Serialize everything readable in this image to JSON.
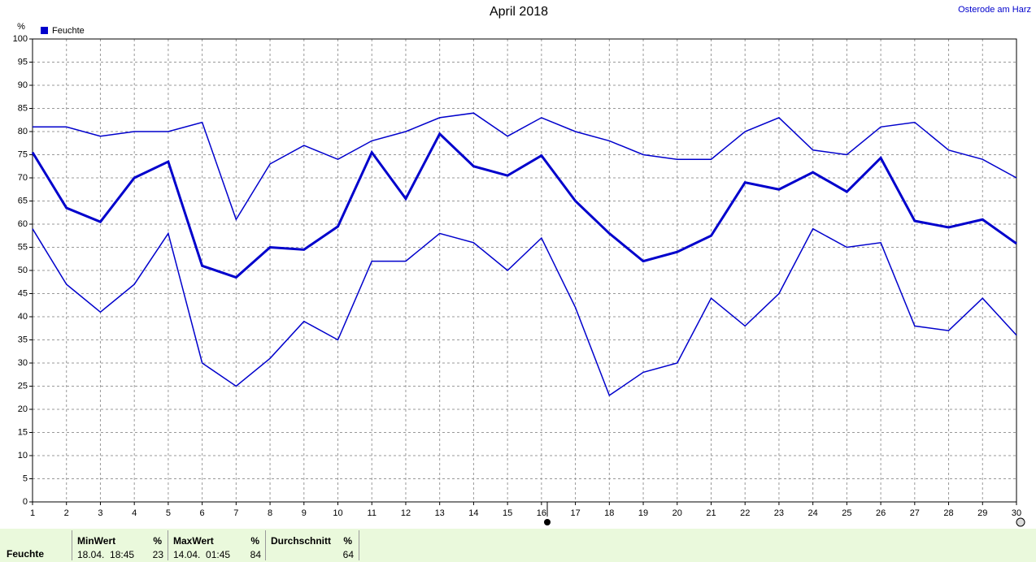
{
  "chart_data": {
    "type": "line",
    "title": "April 2018",
    "location": "Osterode am Harz",
    "y_unit": "%",
    "legend": {
      "label": "Feuchte",
      "color": "#0000cc"
    },
    "categories": [
      "1",
      "2",
      "3",
      "4",
      "5",
      "6",
      "7",
      "8",
      "9",
      "10",
      "11",
      "12",
      "13",
      "14",
      "15",
      "16",
      "17",
      "18",
      "19",
      "20",
      "21",
      "22",
      "23",
      "24",
      "25",
      "26",
      "27",
      "28",
      "29",
      "30"
    ],
    "series": [
      {
        "color": "#0000cc",
        "width": 1.5,
        "values": [
          81,
          81,
          79,
          80,
          80,
          82,
          61,
          73,
          77,
          74,
          78,
          80,
          83,
          84,
          79,
          83,
          80,
          78,
          75,
          74,
          74,
          80,
          83,
          76,
          75,
          81,
          82,
          76,
          74,
          70
        ]
      },
      {
        "color": "#0000cc",
        "width": 3,
        "values": [
          75.5,
          63.5,
          60.5,
          70,
          73.5,
          51,
          48.5,
          55,
          54.5,
          59.5,
          75.5,
          65.5,
          79.5,
          72.5,
          70.5,
          74.8,
          65,
          58,
          52,
          54,
          57.5,
          69,
          67.5,
          71.2,
          67,
          74.3,
          60.7,
          59.3,
          61,
          55.8
        ]
      },
      {
        "color": "#0000cc",
        "width": 1.5,
        "values": [
          59,
          47,
          41,
          47,
          58,
          30,
          25,
          31,
          39,
          35,
          52,
          52,
          58,
          56,
          50,
          57,
          42,
          23,
          28,
          30,
          44,
          38,
          45,
          59,
          55,
          56,
          38,
          37,
          44,
          36
        ]
      }
    ],
    "ylim": [
      0,
      100
    ],
    "yticks": [
      0,
      5,
      10,
      15,
      20,
      25,
      30,
      35,
      40,
      45,
      50,
      55,
      60,
      65,
      70,
      75,
      80,
      85,
      90,
      95,
      100
    ],
    "grid": true
  },
  "footer": {
    "row_label": "Feuchte",
    "columns": [
      {
        "header": "MinWert",
        "unit": "%",
        "date": "18.04.  18:45",
        "value": "23"
      },
      {
        "header": "MaxWert",
        "unit": "%",
        "date": "14.04.  01:45",
        "value": "84"
      },
      {
        "header": "Durchschnitt",
        "unit": "%",
        "value": "64"
      }
    ]
  }
}
